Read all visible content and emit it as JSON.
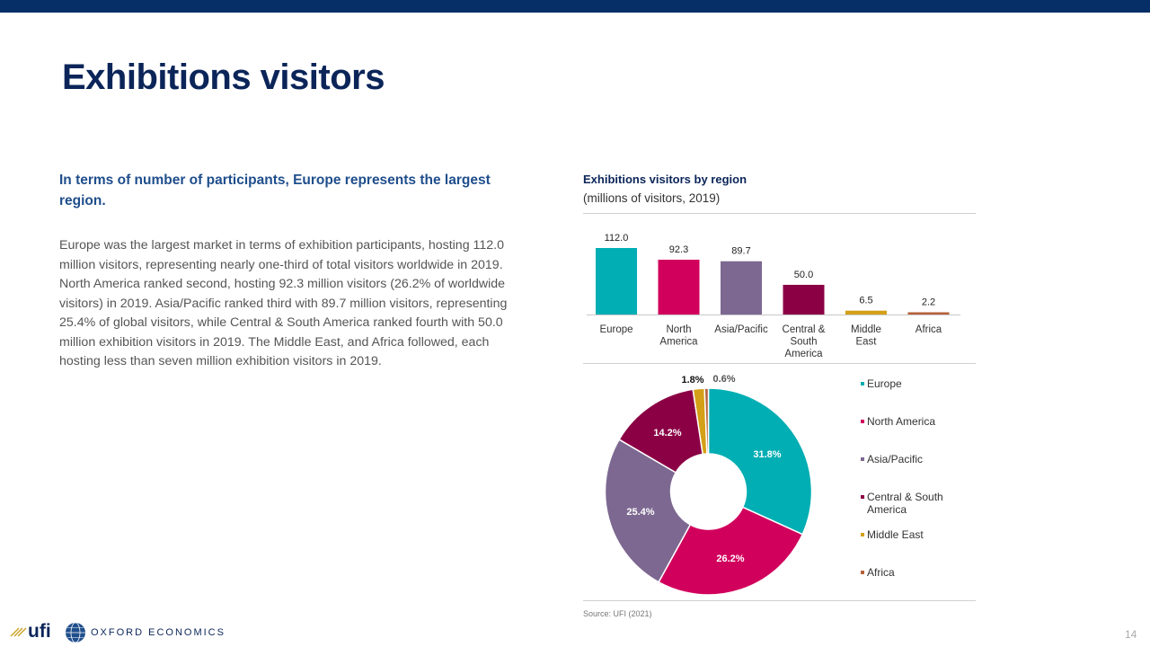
{
  "page": {
    "title": "Exhibitions visitors",
    "lead": "In terms of number of participants, Europe represents the largest region.",
    "body": "Europe was the largest market in terms of exhibition participants, hosting 112.0 million visitors, representing nearly one-third of total visitors worldwide in 2019. North America ranked second, hosting 92.3 million visitors (26.2% of worldwide visitors) in 2019. Asia/Pacific ranked third with 89.7 million visitors, representing 25.4% of global visitors, while Central & South America ranked fourth with 50.0 million exhibition visitors in 2019. The Middle East, and Africa followed, each hosting less than seven million exhibition visitors in 2019.",
    "page_number": "14"
  },
  "source": "Source: UFI (2021)",
  "logos": {
    "ufi": "ufi",
    "oxford": "OXFORD ECONOMICS"
  },
  "colors": {
    "accent": "#062e67",
    "series": [
      "#00aeb3",
      "#d1005d",
      "#7c6891",
      "#8b0045",
      "#d4a017",
      "#b6613a"
    ]
  },
  "chart_data": [
    {
      "type": "bar",
      "title": "Exhibitions visitors by region",
      "subtitle": "(millions of visitors, 2019)",
      "categories": [
        [
          "Europe"
        ],
        [
          "North",
          "America"
        ],
        [
          "Asia/Pacific"
        ],
        [
          "Central &",
          "South",
          "America"
        ],
        [
          "Middle",
          "East"
        ],
        [
          "Africa"
        ]
      ],
      "values": [
        112.0,
        92.3,
        89.7,
        50.0,
        6.5,
        2.2
      ],
      "value_labels": [
        "112.0",
        "92.3",
        "89.7",
        "50.0",
        "6.5",
        "2.2"
      ],
      "ylim": [
        0,
        112
      ]
    },
    {
      "type": "pie",
      "donut": true,
      "labels": [
        "Europe",
        "North America",
        "Asia/Pacific",
        "Central & South America",
        "Middle East",
        "Africa"
      ],
      "legend_labels": [
        [
          "Europe"
        ],
        [
          "North America"
        ],
        [
          "Asia/Pacific"
        ],
        [
          "Central & South",
          "America"
        ],
        [
          "Middle East"
        ],
        [
          "Africa"
        ]
      ],
      "values": [
        31.8,
        26.2,
        25.4,
        14.2,
        1.8,
        0.6
      ],
      "value_labels": [
        "31.8%",
        "26.2%",
        "25.4%",
        "14.2%",
        "1.8%",
        "0.6%"
      ],
      "legend_position": "right"
    }
  ]
}
